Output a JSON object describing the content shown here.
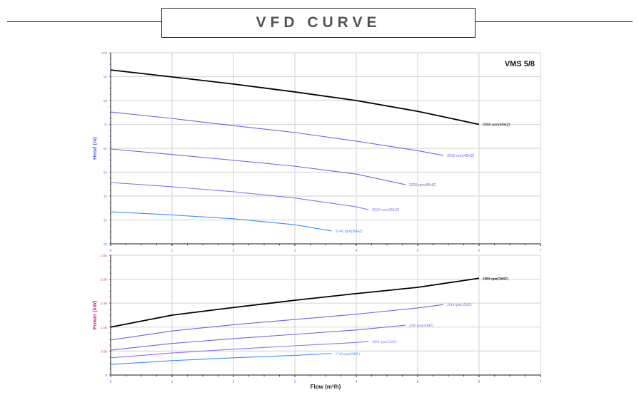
{
  "header": {
    "title": "VFD CURVE"
  },
  "chart_data": [
    {
      "type": "line",
      "title": "VMS 5/8",
      "xlabel": "Flow (m³/h)",
      "ylabel": "Head (m)",
      "xlim": [
        0,
        7
      ],
      "ylim": [
        20,
        100
      ],
      "xticks": [
        "0",
        "1",
        "2",
        "3",
        "4",
        "5",
        "6",
        "7"
      ],
      "yticks": [
        "20",
        "30",
        "40",
        "50",
        "60",
        "70",
        "80",
        "90",
        "100"
      ],
      "grid": true,
      "series": [
        {
          "name": "2900 rpm(50HZ)",
          "color": "#000000",
          "x": [
            0,
            1,
            2,
            3,
            4,
            5,
            6
          ],
          "y": [
            92.8,
            89.9,
            86.9,
            83.6,
            80,
            75.5,
            70
          ]
        },
        {
          "name": "2610 rpm(45HZ)",
          "color": "#7b5ce6",
          "x": [
            0,
            1,
            2,
            3,
            4,
            5,
            5.42
          ],
          "y": [
            75.2,
            72.5,
            69.5,
            66.6,
            63,
            59,
            57
          ]
        },
        {
          "name": "2320 rpm(40HZ)",
          "color": "#7a5fe0",
          "x": [
            0,
            1,
            2,
            3,
            4,
            4.8
          ],
          "y": [
            59.7,
            57.4,
            55,
            52.5,
            49.2,
            44.8
          ]
        },
        {
          "name": "2030 rpm(35HZ)",
          "color": "#9070f0",
          "x": [
            0,
            1,
            2,
            3,
            4,
            4.2
          ],
          "y": [
            45.7,
            43.9,
            41.8,
            39.2,
            35.5,
            34.3
          ]
        },
        {
          "name": "1740 rpm(30HZ)",
          "color": "#3d8ef5",
          "x": [
            0,
            1,
            2,
            3,
            3.6
          ],
          "y": [
            33.4,
            32.1,
            30.5,
            28,
            25.4
          ]
        }
      ]
    },
    {
      "type": "line",
      "xlabel": "Flow (m³/h)",
      "ylabel": "Power (kW)",
      "xlim": [
        0,
        7
      ],
      "ylim": [
        0,
        2.5
      ],
      "xticks": [
        "0",
        "1",
        "2",
        "3",
        "4",
        "5",
        "6",
        "7"
      ],
      "yticks": [
        "0",
        "0.50",
        "1.00",
        "1.50",
        "2.00",
        "2.50"
      ],
      "grid": true,
      "series": [
        {
          "name": "2900 rpm(50HZ)",
          "color": "#000000",
          "x": [
            0,
            1,
            2,
            3,
            4,
            5,
            6
          ],
          "y": [
            1.0,
            1.25,
            1.41,
            1.56,
            1.7,
            1.83,
            2.02
          ]
        },
        {
          "name": "2610 rpm(45HZ)",
          "color": "#7b5ce6",
          "x": [
            0,
            1,
            2,
            3,
            4,
            5,
            5.42
          ],
          "y": [
            0.73,
            0.92,
            1.05,
            1.16,
            1.27,
            1.4,
            1.47
          ]
        },
        {
          "name": "2320 rpm(40HZ)",
          "color": "#7a5fe0",
          "x": [
            0,
            1,
            2,
            3,
            4,
            4.8
          ],
          "y": [
            0.52,
            0.66,
            0.76,
            0.85,
            0.94,
            1.04
          ]
        },
        {
          "name": "2030 rpm(35HZ)",
          "color": "#9070f0",
          "x": [
            0,
            1,
            2,
            3,
            4,
            4.2
          ],
          "y": [
            0.36,
            0.46,
            0.54,
            0.61,
            0.68,
            0.7
          ]
        },
        {
          "name": "1740 rpm(30HZ)",
          "color": "#3d8ef5",
          "x": [
            0,
            1,
            2,
            3,
            3.6
          ],
          "y": [
            0.22,
            0.3,
            0.36,
            0.41,
            0.45
          ]
        }
      ]
    }
  ]
}
